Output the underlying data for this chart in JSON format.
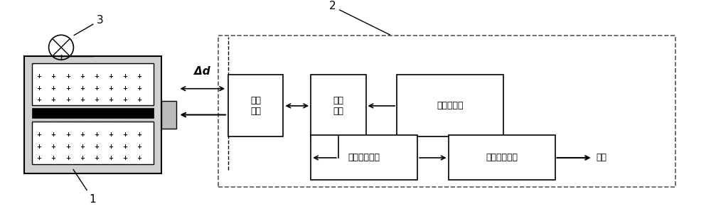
{
  "fig_width": 10.0,
  "fig_height": 2.94,
  "dpi": 100,
  "bg_color": "#ffffff",
  "label1": "1",
  "label2": "2",
  "label3": "3",
  "delta_d_label": "Δd",
  "box_probe": "探头\n线圈",
  "box_ac": "交流\n电桥",
  "box_excite": "激励信号源",
  "box_demod": "信号解调电路",
  "box_lpf": "低通滤波电路",
  "output_label": "输出",
  "line_color": "#000000",
  "dashed_box_color": "#555555"
}
